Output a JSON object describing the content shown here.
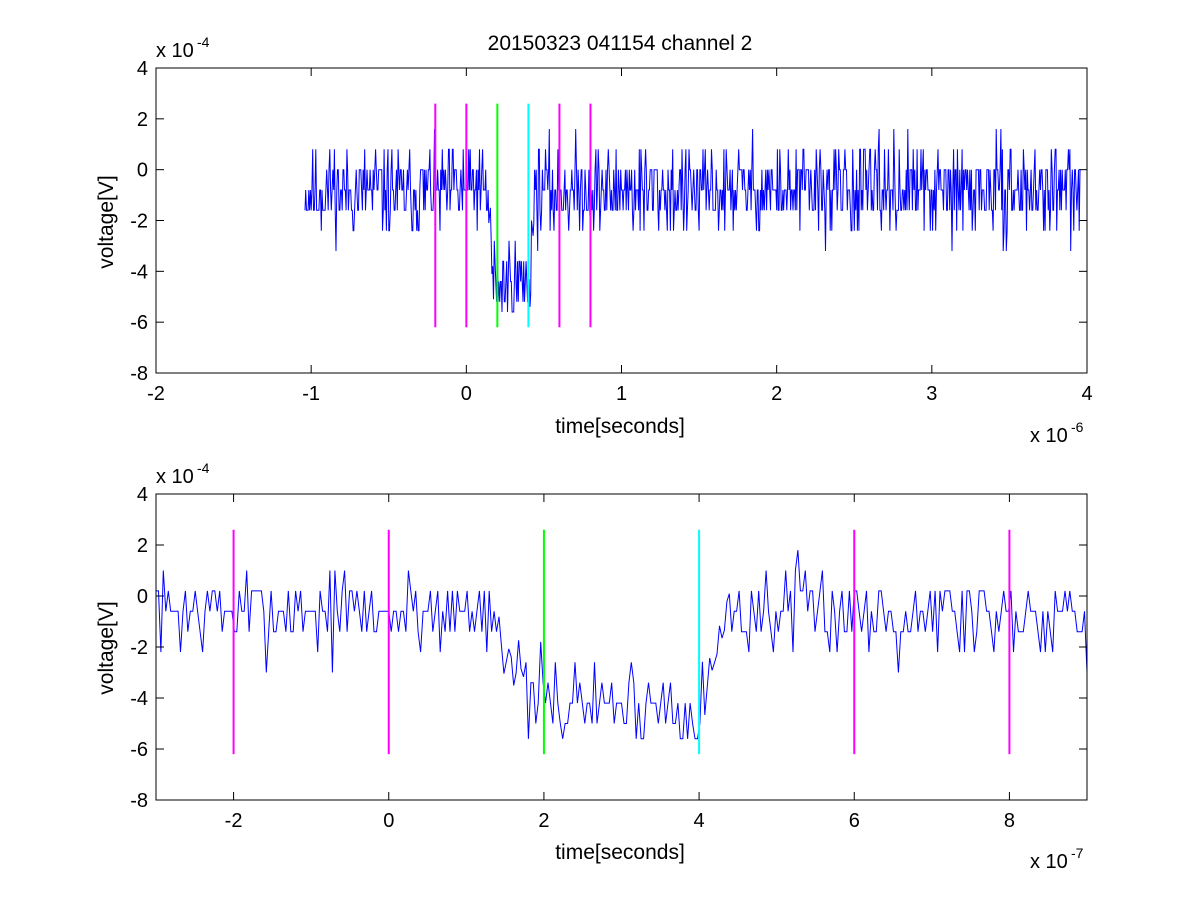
{
  "chart_data": [
    {
      "type": "line",
      "title": "20150323 041154 channel 2",
      "xlabel": "time[seconds]",
      "ylabel": "voltage[V]",
      "x_exponent_base": "x 10",
      "x_exponent_power": "-6",
      "y_exponent_base": "x 10",
      "y_exponent_power": "-4",
      "xlim": [
        -2,
        4
      ],
      "ylim": [
        -8,
        4
      ],
      "xticks": [
        "-2",
        "-1",
        "0",
        "1",
        "2",
        "3",
        "4"
      ],
      "xtick_values": [
        -2,
        -1,
        0,
        1,
        2,
        3,
        4
      ],
      "yticks": [
        "-8",
        "-6",
        "-4",
        "-2",
        "0",
        "2",
        "4"
      ],
      "ytick_values": [
        -8,
        -6,
        -4,
        -2,
        0,
        2,
        4
      ],
      "grid": false,
      "signal": {
        "color": "#0000ff",
        "x_start": -1.04,
        "x_end": 3.96,
        "baseline": -0.8,
        "dip_start": 0.14,
        "dip_end": 0.44,
        "dip_level": -4.4,
        "noise_step": 0.8,
        "seed": 11
      },
      "vlines": [
        {
          "x": -0.2,
          "color": "#ff00ff",
          "ymin": -6.2,
          "ymax": 2.6
        },
        {
          "x": 0.0,
          "color": "#ff00ff",
          "ymin": -6.2,
          "ymax": 2.6
        },
        {
          "x": 0.2,
          "color": "#00ff00",
          "ymin": -6.2,
          "ymax": 2.6
        },
        {
          "x": 0.4,
          "color": "#00ffff",
          "ymin": -6.2,
          "ymax": 2.6
        },
        {
          "x": 0.6,
          "color": "#ff00ff",
          "ymin": -6.2,
          "ymax": 2.6
        },
        {
          "x": 0.8,
          "color": "#ff00ff",
          "ymin": -6.2,
          "ymax": 2.6
        }
      ]
    },
    {
      "type": "line",
      "title": "",
      "xlabel": "time[seconds]",
      "ylabel": "voltage[V]",
      "x_exponent_base": "x 10",
      "x_exponent_power": "-7",
      "y_exponent_base": "x 10",
      "y_exponent_power": "-4",
      "xlim": [
        -3,
        9
      ],
      "ylim": [
        -8,
        4
      ],
      "xticks": [
        "-2",
        "0",
        "2",
        "4",
        "6",
        "8"
      ],
      "xtick_values": [
        -2,
        0,
        2,
        4,
        6,
        8
      ],
      "yticks": [
        "-8",
        "-6",
        "-4",
        "-2",
        "0",
        "2",
        "4"
      ],
      "ytick_values": [
        -8,
        -6,
        -4,
        -2,
        0,
        2,
        4
      ],
      "grid": false,
      "signal": {
        "color": "#0000ff",
        "x_start": -3,
        "x_end": 9,
        "baseline": -0.6,
        "dip_start": 1.4,
        "dip_end": 4.4,
        "dip_level": -4.2,
        "noise_step": 0.8,
        "seed": 7
      },
      "vlines": [
        {
          "x": -2,
          "color": "#ff00ff",
          "ymin": -6.2,
          "ymax": 2.6
        },
        {
          "x": 0,
          "color": "#ff00ff",
          "ymin": -6.2,
          "ymax": 2.6
        },
        {
          "x": 2,
          "color": "#00ff00",
          "ymin": -6.2,
          "ymax": 2.6
        },
        {
          "x": 4,
          "color": "#00ffff",
          "ymin": -6.2,
          "ymax": 2.6
        },
        {
          "x": 6,
          "color": "#ff00ff",
          "ymin": -6.2,
          "ymax": 2.6
        },
        {
          "x": 8,
          "color": "#ff00ff",
          "ymin": -6.2,
          "ymax": 2.6
        }
      ]
    }
  ]
}
